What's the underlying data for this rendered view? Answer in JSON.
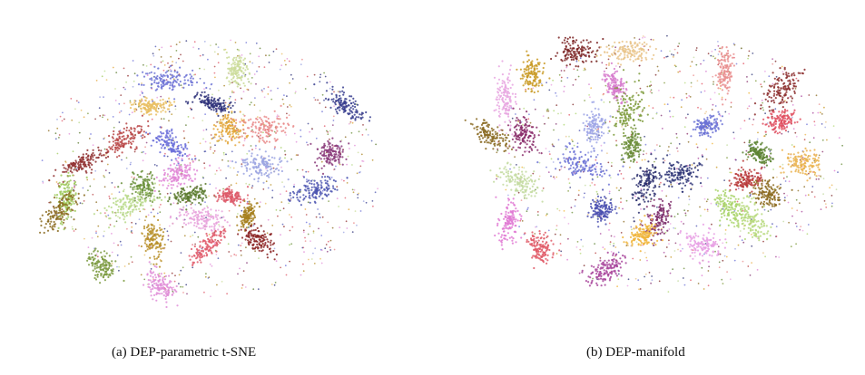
{
  "figure": {
    "panels": [
      {
        "caption": "(a) DEP-parametric t-SNE"
      },
      {
        "caption": "(b) DEP-manifold"
      }
    ]
  },
  "chart_data": [
    {
      "type": "scatter",
      "title": "(a) DEP-parametric t-SNE",
      "xlabel": "",
      "ylabel": "",
      "axes_visible": false,
      "grid": false,
      "clusters": [
        {
          "color": "#6f74d6",
          "x": 0.4,
          "y": 0.19
        },
        {
          "color": "#cbdc9a",
          "x": 0.59,
          "y": 0.15
        },
        {
          "color": "#2b2f78",
          "x": 0.52,
          "y": 0.27
        },
        {
          "color": "#3a3f8f",
          "x": 0.89,
          "y": 0.28
        },
        {
          "color": "#e9be62",
          "x": 0.35,
          "y": 0.28
        },
        {
          "color": "#e3a63a",
          "x": 0.57,
          "y": 0.36
        },
        {
          "color": "#e98a8a",
          "x": 0.67,
          "y": 0.36
        },
        {
          "color": "#b84747",
          "x": 0.28,
          "y": 0.4
        },
        {
          "color": "#6b6fd9",
          "x": 0.41,
          "y": 0.42
        },
        {
          "color": "#9aa3e0",
          "x": 0.66,
          "y": 0.49
        },
        {
          "color": "#8a3a7a",
          "x": 0.85,
          "y": 0.45
        },
        {
          "color": "#8f2f2f",
          "x": 0.17,
          "y": 0.48
        },
        {
          "color": "#e087d6",
          "x": 0.43,
          "y": 0.52
        },
        {
          "color": "#4c55b0",
          "x": 0.8,
          "y": 0.58
        },
        {
          "color": "#6a8f3a",
          "x": 0.33,
          "y": 0.57
        },
        {
          "color": "#5b7a2e",
          "x": 0.46,
          "y": 0.6
        },
        {
          "color": "#9dc95a",
          "x": 0.12,
          "y": 0.61
        },
        {
          "color": "#8a6a1f",
          "x": 0.1,
          "y": 0.66
        },
        {
          "color": "#b8d98a",
          "x": 0.3,
          "y": 0.63
        },
        {
          "color": "#dd5a6a",
          "x": 0.57,
          "y": 0.6
        },
        {
          "color": "#a6801e",
          "x": 0.62,
          "y": 0.67
        },
        {
          "color": "#e8a2dc",
          "x": 0.49,
          "y": 0.68
        },
        {
          "color": "#b8902a",
          "x": 0.36,
          "y": 0.76
        },
        {
          "color": "#8b2525",
          "x": 0.65,
          "y": 0.76
        },
        {
          "color": "#e05c6c",
          "x": 0.51,
          "y": 0.78
        },
        {
          "color": "#7b9a40",
          "x": 0.22,
          "y": 0.85
        },
        {
          "color": "#e18fd8",
          "x": 0.38,
          "y": 0.92
        }
      ]
    },
    {
      "type": "scatter",
      "title": "(b) DEP-manifold",
      "xlabel": "",
      "ylabel": "",
      "axes_visible": false,
      "grid": false,
      "clusters": [
        {
          "color": "#7b2323",
          "x": 0.27,
          "y": 0.1
        },
        {
          "color": "#e9c48a",
          "x": 0.42,
          "y": 0.1
        },
        {
          "color": "#c99a24",
          "x": 0.15,
          "y": 0.18
        },
        {
          "color": "#e98f8f",
          "x": 0.67,
          "y": 0.18
        },
        {
          "color": "#d67acd",
          "x": 0.37,
          "y": 0.22
        },
        {
          "color": "#8b2b2b",
          "x": 0.82,
          "y": 0.24
        },
        {
          "color": "#e8a6e0",
          "x": 0.08,
          "y": 0.27
        },
        {
          "color": "#7d9a3a",
          "x": 0.41,
          "y": 0.31
        },
        {
          "color": "#9fa6e6",
          "x": 0.32,
          "y": 0.37
        },
        {
          "color": "#6b72d5",
          "x": 0.62,
          "y": 0.37
        },
        {
          "color": "#e15060",
          "x": 0.82,
          "y": 0.35
        },
        {
          "color": "#8a6a22",
          "x": 0.04,
          "y": 0.4
        },
        {
          "color": "#8a2d6a",
          "x": 0.13,
          "y": 0.4
        },
        {
          "color": "#6b8d3a",
          "x": 0.42,
          "y": 0.44
        },
        {
          "color": "#5c8231",
          "x": 0.76,
          "y": 0.46
        },
        {
          "color": "#eab34f",
          "x": 0.88,
          "y": 0.5
        },
        {
          "color": "#6f74d6",
          "x": 0.29,
          "y": 0.51
        },
        {
          "color": "#2e3577",
          "x": 0.55,
          "y": 0.54
        },
        {
          "color": "#2c2f6f",
          "x": 0.46,
          "y": 0.57
        },
        {
          "color": "#c3dba0",
          "x": 0.12,
          "y": 0.57
        },
        {
          "color": "#b83a3a",
          "x": 0.73,
          "y": 0.56
        },
        {
          "color": "#8c6a1f",
          "x": 0.79,
          "y": 0.61
        },
        {
          "color": "#4a4fb0",
          "x": 0.34,
          "y": 0.67
        },
        {
          "color": "#a9d46b",
          "x": 0.68,
          "y": 0.66
        },
        {
          "color": "#b7d97e",
          "x": 0.75,
          "y": 0.71
        },
        {
          "color": "#7f2f6c",
          "x": 0.49,
          "y": 0.7
        },
        {
          "color": "#e07ad3",
          "x": 0.09,
          "y": 0.71
        },
        {
          "color": "#f0b43a",
          "x": 0.45,
          "y": 0.76
        },
        {
          "color": "#e8a0e4",
          "x": 0.61,
          "y": 0.79
        },
        {
          "color": "#e05a67",
          "x": 0.17,
          "y": 0.8
        },
        {
          "color": "#a8459b",
          "x": 0.35,
          "y": 0.88
        }
      ]
    }
  ]
}
